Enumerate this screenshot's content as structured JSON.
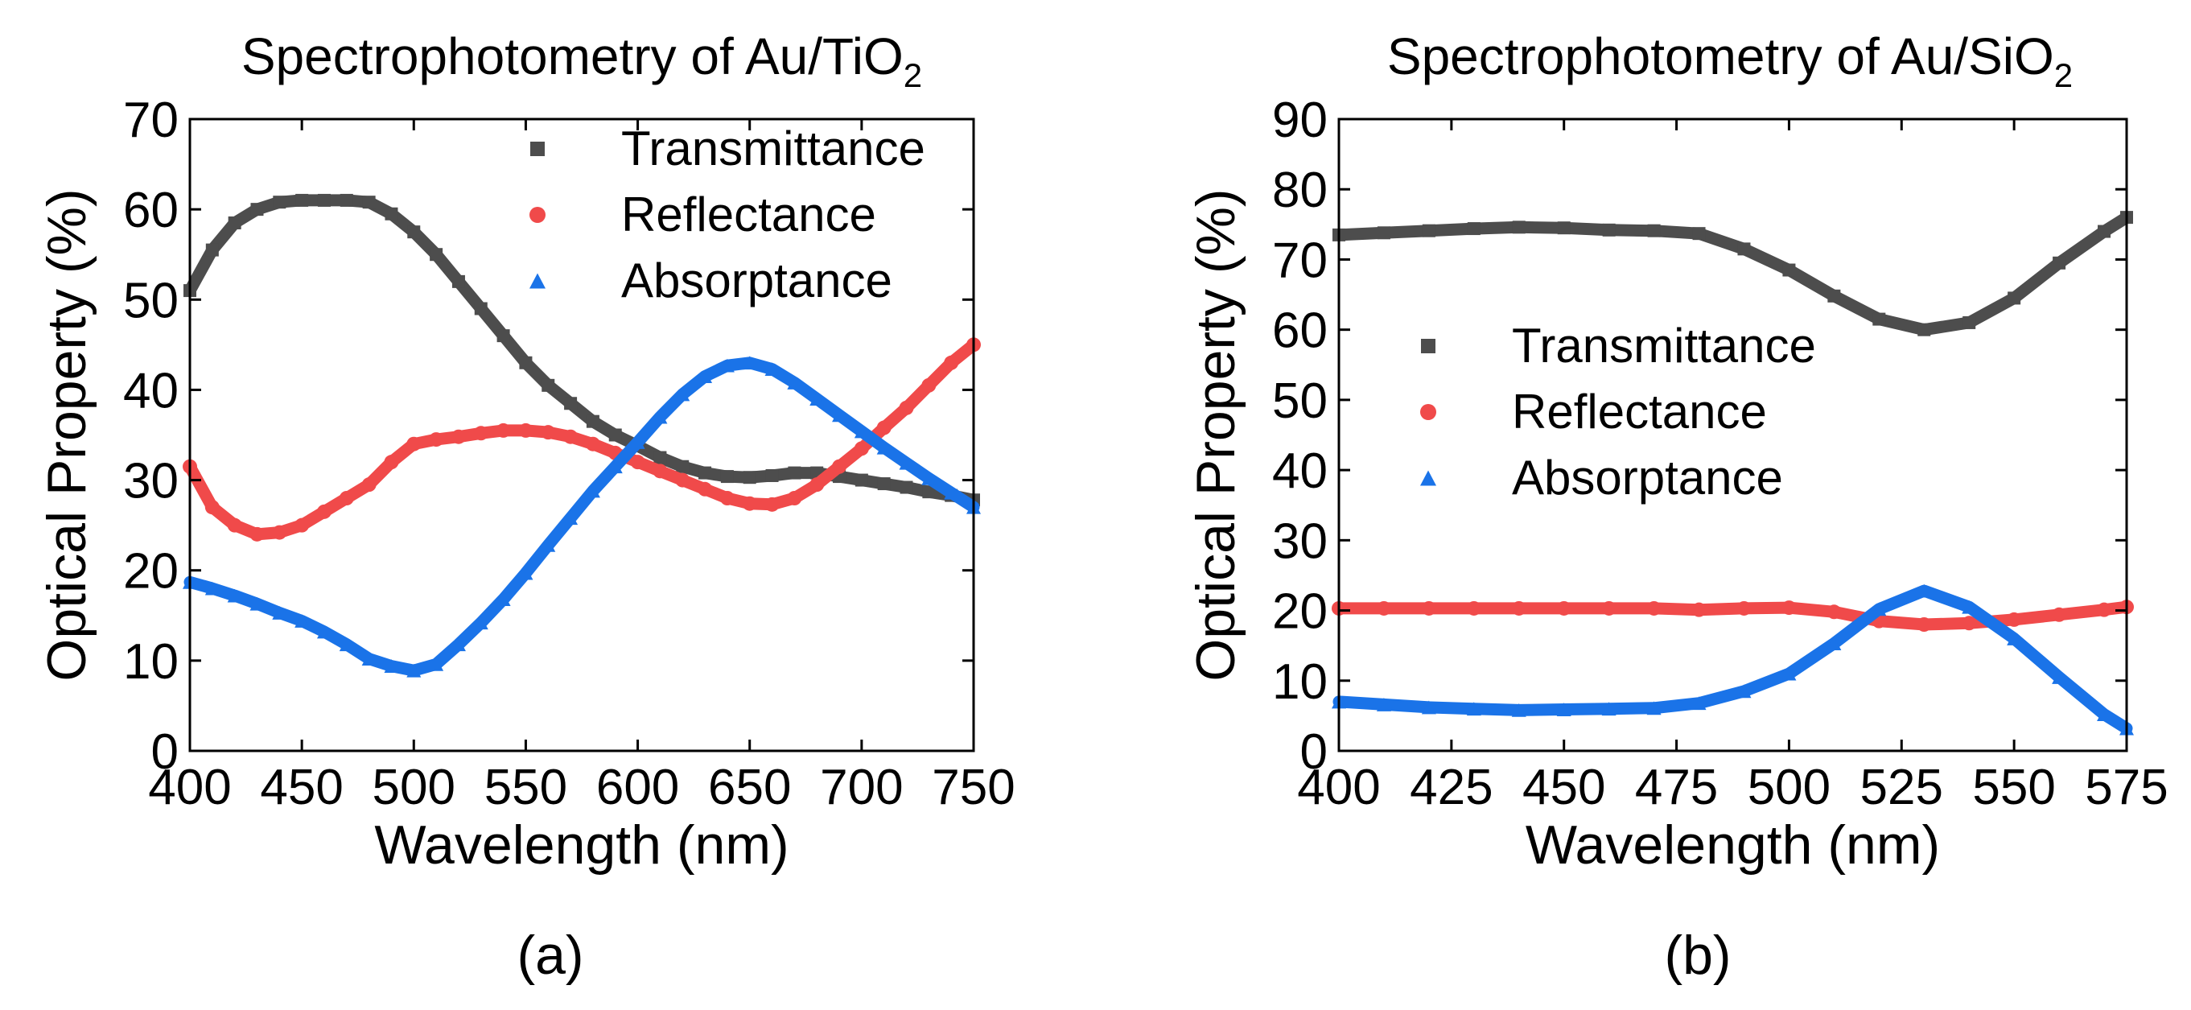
{
  "chart_data": [
    {
      "type": "scatter",
      "title": "Spectrophotometry of Au/TiO",
      "title_subscript": "2",
      "xlabel": "Wavelength (nm)",
      "ylabel": "Optical Property (%)",
      "xlim": [
        400,
        750
      ],
      "ylim": [
        0,
        70
      ],
      "xticks": [
        400,
        450,
        500,
        550,
        600,
        650,
        700,
        750
      ],
      "yticks": [
        0,
        10,
        20,
        30,
        40,
        50,
        60,
        70
      ],
      "panel_label": "(a)",
      "grid": false,
      "legend_position": "top-right",
      "series": [
        {
          "name": "Transmittance",
          "color": "#4d4d4d",
          "marker": "square",
          "x": [
            400,
            410,
            420,
            430,
            440,
            450,
            460,
            470,
            480,
            490,
            500,
            510,
            520,
            530,
            540,
            550,
            560,
            570,
            580,
            590,
            600,
            610,
            620,
            630,
            640,
            650,
            660,
            670,
            680,
            690,
            700,
            710,
            720,
            730,
            740,
            750
          ],
          "y": [
            51,
            55.5,
            58.5,
            60,
            60.8,
            61,
            61,
            61,
            60.8,
            59.5,
            57.5,
            55,
            52,
            49,
            46,
            43,
            40.5,
            38.5,
            36.5,
            35,
            33.8,
            32.5,
            31.5,
            30.8,
            30.4,
            30.3,
            30.5,
            30.8,
            30.8,
            30.4,
            30,
            29.6,
            29.2,
            28.7,
            28.3,
            27.8
          ]
        },
        {
          "name": "Reflectance",
          "color": "#f04a4a",
          "marker": "circle",
          "x": [
            400,
            410,
            420,
            430,
            440,
            450,
            460,
            470,
            480,
            490,
            500,
            510,
            520,
            530,
            540,
            550,
            560,
            570,
            580,
            590,
            600,
            610,
            620,
            630,
            640,
            650,
            660,
            670,
            680,
            690,
            700,
            710,
            720,
            730,
            740,
            750
          ],
          "y": [
            31.5,
            27,
            25,
            24,
            24.2,
            25,
            26.5,
            28,
            29.5,
            32,
            34,
            34.5,
            34.8,
            35.2,
            35.5,
            35.5,
            35.3,
            34.8,
            34,
            33,
            32,
            31,
            30,
            29,
            28,
            27.4,
            27.3,
            28,
            29.5,
            31.5,
            33.5,
            35.8,
            38,
            40.5,
            43,
            45
          ]
        },
        {
          "name": "Absorptance",
          "color": "#1a73e8",
          "marker": "triangle",
          "x": [
            400,
            410,
            420,
            430,
            440,
            450,
            460,
            470,
            480,
            490,
            500,
            510,
            520,
            530,
            540,
            550,
            560,
            570,
            580,
            590,
            600,
            610,
            620,
            630,
            640,
            650,
            660,
            670,
            680,
            690,
            700,
            710,
            720,
            730,
            740,
            750
          ],
          "y": [
            18.7,
            18,
            17.2,
            16.3,
            15.3,
            14.4,
            13.2,
            11.8,
            10.2,
            9.4,
            8.9,
            9.6,
            11.8,
            14.2,
            16.8,
            19.7,
            22.8,
            25.8,
            28.8,
            31.5,
            34.2,
            37,
            39.5,
            41.5,
            42.7,
            43,
            42.3,
            40.8,
            39,
            37.2,
            35.4,
            33.6,
            31.9,
            30.2,
            28.6,
            27
          ]
        }
      ]
    },
    {
      "type": "scatter",
      "title": "Spectrophotometry of Au/SiO",
      "title_subscript": "2",
      "xlabel": "Wavelength (nm)",
      "ylabel": "Optical Property (%)",
      "xlim": [
        400,
        575
      ],
      "ylim": [
        0,
        90
      ],
      "xticks": [
        400,
        425,
        450,
        475,
        500,
        525,
        550,
        575
      ],
      "yticks": [
        0,
        10,
        20,
        30,
        40,
        50,
        60,
        70,
        80,
        90
      ],
      "panel_label": "(b)",
      "grid": false,
      "legend_position": "center-left",
      "series": [
        {
          "name": "Transmittance",
          "color": "#4d4d4d",
          "marker": "square",
          "x": [
            400,
            410,
            420,
            430,
            440,
            450,
            460,
            470,
            480,
            490,
            500,
            510,
            520,
            530,
            540,
            550,
            560,
            570,
            575
          ],
          "y": [
            73.5,
            73.8,
            74.1,
            74.4,
            74.6,
            74.5,
            74.2,
            74.1,
            73.7,
            71.5,
            68.5,
            64.8,
            61.5,
            60,
            61,
            64.5,
            69.5,
            74,
            76
          ]
        },
        {
          "name": "Reflectance",
          "color": "#f04a4a",
          "marker": "circle",
          "x": [
            400,
            410,
            420,
            430,
            440,
            450,
            460,
            470,
            480,
            490,
            500,
            510,
            520,
            530,
            540,
            550,
            560,
            570,
            575
          ],
          "y": [
            20.3,
            20.3,
            20.3,
            20.3,
            20.3,
            20.3,
            20.3,
            20.3,
            20.1,
            20.3,
            20.4,
            19.8,
            18.5,
            18,
            18.2,
            18.7,
            19.4,
            20.1,
            20.5
          ]
        },
        {
          "name": "Absorptance",
          "color": "#1a73e8",
          "marker": "triangle",
          "x": [
            400,
            410,
            420,
            430,
            440,
            450,
            460,
            470,
            480,
            490,
            500,
            510,
            520,
            530,
            540,
            550,
            560,
            570,
            575
          ],
          "y": [
            7,
            6.6,
            6.2,
            6,
            5.8,
            5.9,
            6,
            6.1,
            6.8,
            8.5,
            11,
            15.3,
            20.2,
            22.8,
            20.5,
            16,
            10.5,
            5.2,
            3.2
          ]
        }
      ]
    }
  ]
}
